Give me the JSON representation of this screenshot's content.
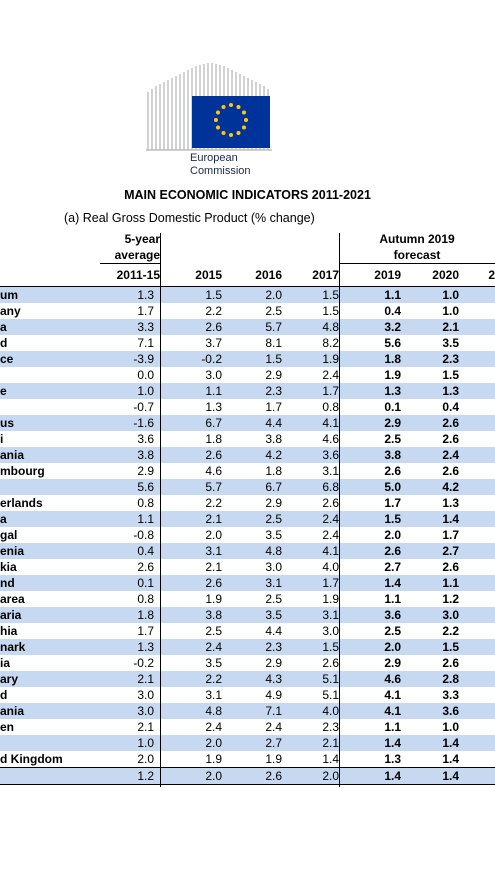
{
  "logo": {
    "line1": "European",
    "line2": "Commission",
    "flag_color": "#003399",
    "star_color": "#ffcc00"
  },
  "title": "MAIN ECONOMIC INDICATORS 2011-2021",
  "subtitle": "(a) Real Gross Domestic Product (% change)",
  "header": {
    "avg_line1": "5-year",
    "avg_line2": "average",
    "forecast_line1": "Autumn 2019",
    "forecast_line2": "forecast",
    "years": [
      "2011-15",
      "2015",
      "2016",
      "2017",
      "2019",
      "2020",
      "2"
    ]
  },
  "rows": [
    {
      "name": "um",
      "v": [
        "1.3",
        "1.5",
        "2.0",
        "1.5",
        "1.1",
        "1.0"
      ]
    },
    {
      "name": "any",
      "v": [
        "1.7",
        "2.2",
        "2.5",
        "1.5",
        "0.4",
        "1.0"
      ]
    },
    {
      "name": "a",
      "v": [
        "3.3",
        "2.6",
        "5.7",
        "4.8",
        "3.2",
        "2.1"
      ]
    },
    {
      "name": "d",
      "v": [
        "7.1",
        "3.7",
        "8.1",
        "8.2",
        "5.6",
        "3.5"
      ]
    },
    {
      "name": "ce",
      "v": [
        "-3.9",
        "-0.2",
        "1.5",
        "1.9",
        "1.8",
        "2.3"
      ]
    },
    {
      "name": "",
      "v": [
        "0.0",
        "3.0",
        "2.9",
        "2.4",
        "1.9",
        "1.5"
      ]
    },
    {
      "name": "e",
      "v": [
        "1.0",
        "1.1",
        "2.3",
        "1.7",
        "1.3",
        "1.3"
      ]
    },
    {
      "name": "",
      "v": [
        "-0.7",
        "1.3",
        "1.7",
        "0.8",
        "0.1",
        "0.4"
      ]
    },
    {
      "name": "us",
      "v": [
        "-1.6",
        "6.7",
        "4.4",
        "4.1",
        "2.9",
        "2.6"
      ]
    },
    {
      "name": "i",
      "v": [
        "3.6",
        "1.8",
        "3.8",
        "4.6",
        "2.5",
        "2.6"
      ]
    },
    {
      "name": "ania",
      "v": [
        "3.8",
        "2.6",
        "4.2",
        "3.6",
        "3.8",
        "2.4"
      ]
    },
    {
      "name": "mbourg",
      "v": [
        "2.9",
        "4.6",
        "1.8",
        "3.1",
        "2.6",
        "2.6"
      ]
    },
    {
      "name": "",
      "v": [
        "5.6",
        "5.7",
        "6.7",
        "6.8",
        "5.0",
        "4.2"
      ]
    },
    {
      "name": "erlands",
      "v": [
        "0.8",
        "2.2",
        "2.9",
        "2.6",
        "1.7",
        "1.3"
      ]
    },
    {
      "name": "a",
      "v": [
        "1.1",
        "2.1",
        "2.5",
        "2.4",
        "1.5",
        "1.4"
      ]
    },
    {
      "name": "gal",
      "v": [
        "-0.8",
        "2.0",
        "3.5",
        "2.4",
        "2.0",
        "1.7"
      ]
    },
    {
      "name": "enia",
      "v": [
        "0.4",
        "3.1",
        "4.8",
        "4.1",
        "2.6",
        "2.7"
      ]
    },
    {
      "name": "kia",
      "v": [
        "2.6",
        "2.1",
        "3.0",
        "4.0",
        "2.7",
        "2.6"
      ]
    },
    {
      "name": "nd",
      "v": [
        "0.1",
        "2.6",
        "3.1",
        "1.7",
        "1.4",
        "1.1"
      ]
    },
    {
      "name": "area",
      "v": [
        "0.8",
        "1.9",
        "2.5",
        "1.9",
        "1.1",
        "1.2"
      ]
    },
    {
      "name": "aria",
      "v": [
        "1.8",
        "3.8",
        "3.5",
        "3.1",
        "3.6",
        "3.0"
      ]
    },
    {
      "name": "hia",
      "v": [
        "1.7",
        "2.5",
        "4.4",
        "3.0",
        "2.5",
        "2.2"
      ]
    },
    {
      "name": "nark",
      "v": [
        "1.3",
        "2.4",
        "2.3",
        "1.5",
        "2.0",
        "1.5"
      ]
    },
    {
      "name": "ia",
      "v": [
        "-0.2",
        "3.5",
        "2.9",
        "2.6",
        "2.9",
        "2.6"
      ]
    },
    {
      "name": "ary",
      "v": [
        "2.1",
        "2.2",
        "4.3",
        "5.1",
        "4.6",
        "2.8"
      ]
    },
    {
      "name": "d",
      "v": [
        "3.0",
        "3.1",
        "4.9",
        "5.1",
        "4.1",
        "3.3"
      ]
    },
    {
      "name": "ania",
      "v": [
        "3.0",
        "4.8",
        "7.1",
        "4.0",
        "4.1",
        "3.6"
      ]
    },
    {
      "name": "en",
      "v": [
        "2.1",
        "2.4",
        "2.4",
        "2.3",
        "1.1",
        "1.0"
      ]
    },
    {
      "name": "",
      "v": [
        "1.0",
        "2.0",
        "2.7",
        "2.1",
        "1.4",
        "1.4"
      ]
    },
    {
      "name": "d Kingdom",
      "v": [
        "2.0",
        "1.9",
        "1.9",
        "1.4",
        "1.3",
        "1.4"
      ]
    },
    {
      "name": "",
      "v": [
        "1.2",
        "2.0",
        "2.6",
        "2.0",
        "1.4",
        "1.4"
      ]
    }
  ]
}
